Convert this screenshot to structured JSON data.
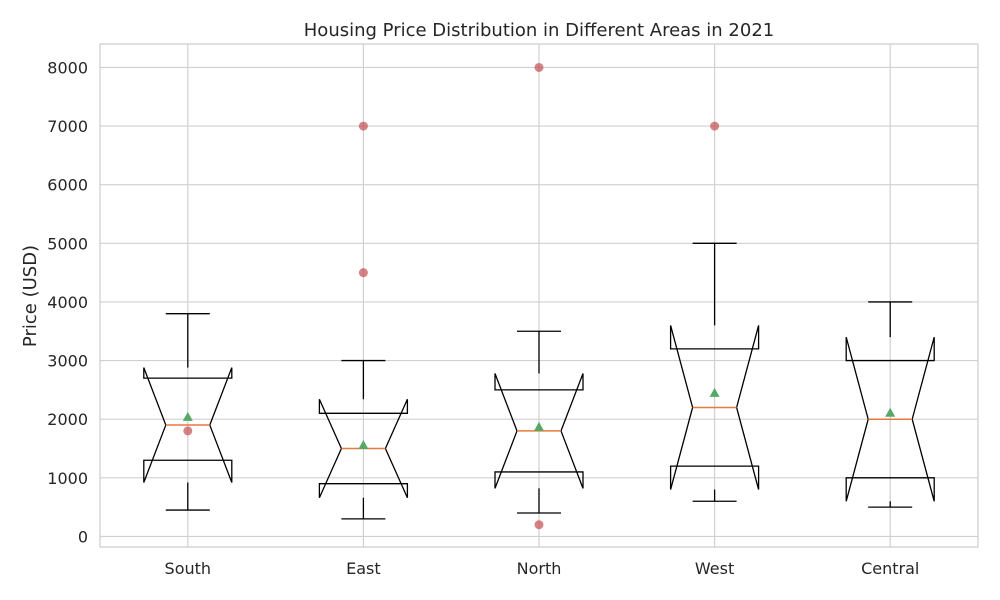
{
  "chart_data": {
    "type": "box",
    "title": "Housing Price Distribution in Different Areas in 2021",
    "xlabel": "",
    "ylabel": "Price (USD)",
    "categories": [
      "South",
      "East",
      "North",
      "West",
      "Central"
    ],
    "yticks": [
      0,
      1000,
      2000,
      3000,
      4000,
      5000,
      6000,
      7000,
      8000
    ],
    "ylim": [
      -180,
      8400
    ],
    "grid": true,
    "notched": true,
    "boxes": [
      {
        "name": "South",
        "whisker_low": 450,
        "q1": 1300,
        "median": 1900,
        "q3": 2700,
        "whisker_high": 3800,
        "notch_low": 920,
        "notch_high": 2880,
        "mean": 2040,
        "outliers": [
          1800
        ]
      },
      {
        "name": "East",
        "whisker_low": 300,
        "q1": 900,
        "median": 1500,
        "q3": 2100,
        "whisker_high": 3000,
        "notch_low": 660,
        "notch_high": 2340,
        "mean": 1560,
        "outliers": [
          4500,
          7000
        ]
      },
      {
        "name": "North",
        "whisker_low": 400,
        "q1": 1100,
        "median": 1800,
        "q3": 2500,
        "whisker_high": 3500,
        "notch_low": 820,
        "notch_high": 2780,
        "mean": 1870,
        "outliers": [
          200,
          8000
        ]
      },
      {
        "name": "West",
        "whisker_low": 600,
        "q1": 1200,
        "median": 2200,
        "q3": 3200,
        "whisker_high": 5000,
        "notch_low": 800,
        "notch_high": 3600,
        "mean": 2450,
        "outliers": [
          7000
        ]
      },
      {
        "name": "Central",
        "whisker_low": 500,
        "q1": 1000,
        "median": 2000,
        "q3": 3000,
        "whisker_high": 4000,
        "notch_low": 600,
        "notch_high": 3400,
        "mean": 2110,
        "outliers": []
      }
    ],
    "colors": {
      "box": "#000000",
      "median": "#e5793f",
      "mean": "#55a868",
      "outlier": "#c44e52",
      "grid": "#d0d0d0",
      "frame": "#cccccc",
      "text": "#262626"
    }
  }
}
